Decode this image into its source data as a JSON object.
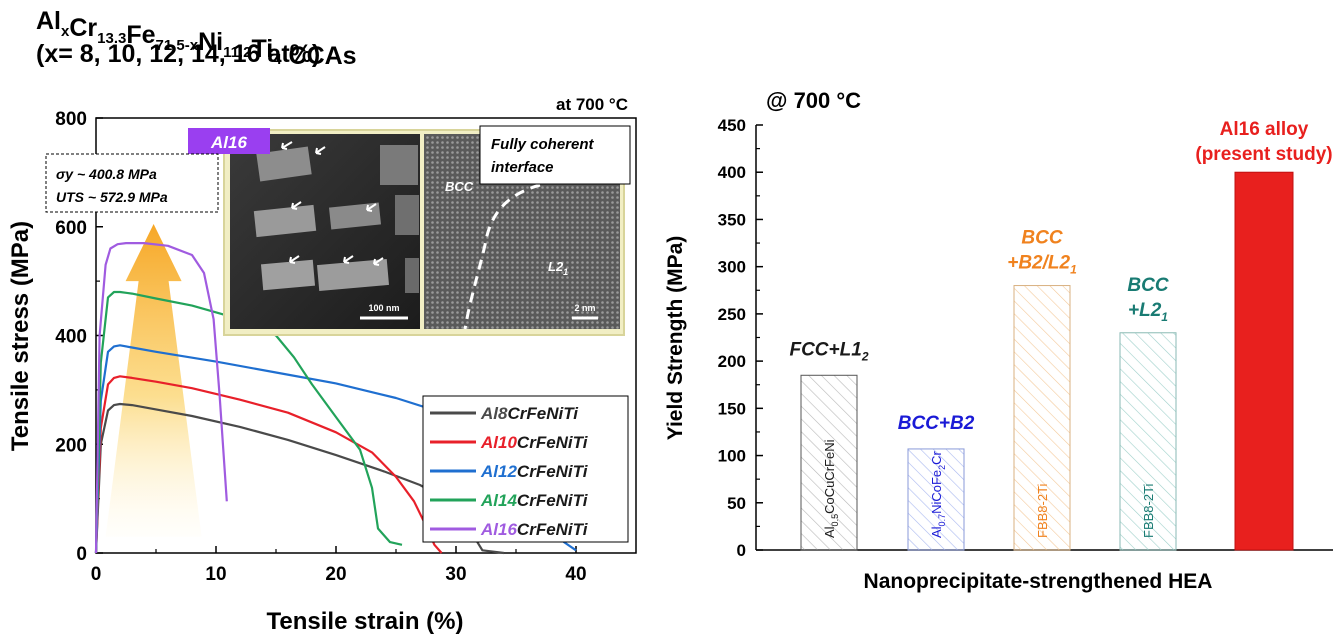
{
  "figure_title": {
    "line1_parts": [
      "Al",
      "x",
      "Cr",
      "13.3",
      "Fe",
      "71.5-x",
      "Ni",
      "11.2",
      "Ti",
      "4",
      "CCAs"
    ],
    "line2": "(x= 8, 10, 12, 14, 16 at%)"
  },
  "colors": {
    "Al8": "#4a4a4a",
    "Al10": "#e8202a",
    "Al12": "#1f6fd0",
    "Al14": "#22a35a",
    "Al16": "#a05be0",
    "blue_label": "#1a1ad6",
    "orange_label": "#f0821e",
    "teal_label": "#197b73",
    "red": "#e8201e",
    "badge": "#9a3ff0"
  },
  "chart_data": [
    {
      "type": "line",
      "title": "at 700  °C",
      "xlabel": "Tensile strain (%)",
      "ylabel": "Tensile stress (MPa)",
      "xlim": [
        0,
        45
      ],
      "ylim": [
        0,
        800
      ],
      "xticks": [
        0,
        10,
        20,
        30,
        40
      ],
      "yticks": [
        0,
        200,
        400,
        600,
        800
      ],
      "series": [
        {
          "name_prefix": "Al8",
          "name_suffix": "CrFeNiTi",
          "color_key": "Al8",
          "x": [
            0,
            0.4,
            1,
            1.5,
            2,
            3,
            5,
            8,
            12,
            16,
            20,
            24,
            27,
            29,
            30.5,
            31.5,
            32.2,
            34
          ],
          "y": [
            0,
            200,
            262,
            272,
            274,
            272,
            264,
            252,
            232,
            208,
            180,
            150,
            125,
            100,
            70,
            30,
            5,
            0
          ]
        },
        {
          "name_prefix": "Al10",
          "name_suffix": "CrFeNiTi",
          "color_key": "Al10",
          "x": [
            0,
            0.4,
            1,
            1.5,
            2,
            3,
            5,
            8,
            12,
            16,
            20,
            23,
            25,
            26.5,
            27.5,
            28.2,
            28.8
          ],
          "y": [
            0,
            230,
            310,
            322,
            325,
            322,
            315,
            303,
            282,
            258,
            222,
            185,
            140,
            95,
            50,
            15,
            0
          ]
        },
        {
          "name_prefix": "Al12",
          "name_suffix": "CrFeNiTi",
          "color_key": "Al12",
          "x": [
            0,
            0.4,
            1,
            1.5,
            2,
            3,
            5,
            10,
            15,
            20,
            25,
            30,
            34,
            36.5,
            38,
            39,
            40
          ],
          "y": [
            0,
            280,
            370,
            380,
            382,
            378,
            370,
            352,
            332,
            312,
            285,
            250,
            195,
            130,
            65,
            20,
            5
          ]
        },
        {
          "name_prefix": "Al14",
          "name_suffix": "CrFeNiTi",
          "color_key": "Al14",
          "x": [
            0,
            0.4,
            1,
            1.5,
            2,
            3,
            5,
            8,
            12,
            15,
            16.5,
            18,
            20,
            22,
            23,
            23.5,
            24.5,
            25.5
          ],
          "y": [
            0,
            350,
            470,
            480,
            480,
            477,
            468,
            455,
            430,
            400,
            360,
            310,
            250,
            190,
            120,
            45,
            20,
            15
          ]
        },
        {
          "name_prefix": "Al16",
          "name_suffix": "CrFeNiTi",
          "color_key": "Al16",
          "x": [
            0,
            0.3,
            0.8,
            1.2,
            1.8,
            2.5,
            4,
            6,
            8,
            9,
            9.8,
            10.3,
            10.7,
            10.9
          ],
          "y": [
            0,
            400,
            530,
            560,
            568,
            570,
            570,
            565,
            548,
            515,
            430,
            290,
            160,
            95
          ]
        }
      ],
      "annotation_sigma": "σy ~ 400.8 MPa",
      "annotation_uts": "UTS ~ 572.9 MPa",
      "badge": "Al16",
      "inset_left": {
        "scale": "100 nm"
      },
      "inset_right": {
        "title_line1": "Fully coherent",
        "title_line2": "interface",
        "phase1": "BCC",
        "phase2": "L2",
        "phase2_sub": "1",
        "scale": "2 nm"
      }
    },
    {
      "type": "bar",
      "title": "@ 700 °C",
      "xlabel": "Nanoprecipitate-strengthened HEA",
      "ylabel": "Yield Strength (MPa)",
      "ylim": [
        0,
        450
      ],
      "yticks": [
        0,
        50,
        100,
        150,
        200,
        250,
        300,
        350,
        400,
        450
      ],
      "values": [
        185,
        107,
        280,
        230,
        400
      ],
      "bar_labels": [
        {
          "parts": [
            "Al",
            "0.5",
            "CoCuCrFeNi"
          ],
          "color_key": "dark"
        },
        {
          "parts": [
            "Al",
            "0.7",
            "NiCoFe",
            "2",
            "Cr"
          ],
          "color_key": "blue_label"
        },
        {
          "parts": [
            "FBB8-2Ti"
          ],
          "color_key": "orange_label"
        },
        {
          "parts": [
            "FBB8-2Ti"
          ],
          "color_key": "teal_label"
        }
      ],
      "phase_labels": [
        {
          "line1": "FCC+L1",
          "line1_sub": "2"
        },
        {
          "line1": "BCC+B2"
        },
        {
          "line1": "BCC",
          "line2": "+B2/L2",
          "line2_sub": "1"
        },
        {
          "line1": "BCC",
          "line2": "+L2",
          "line2_sub": "1"
        },
        {
          "line1": "Al16 alloy",
          "line2": "(present study)"
        }
      ]
    }
  ]
}
